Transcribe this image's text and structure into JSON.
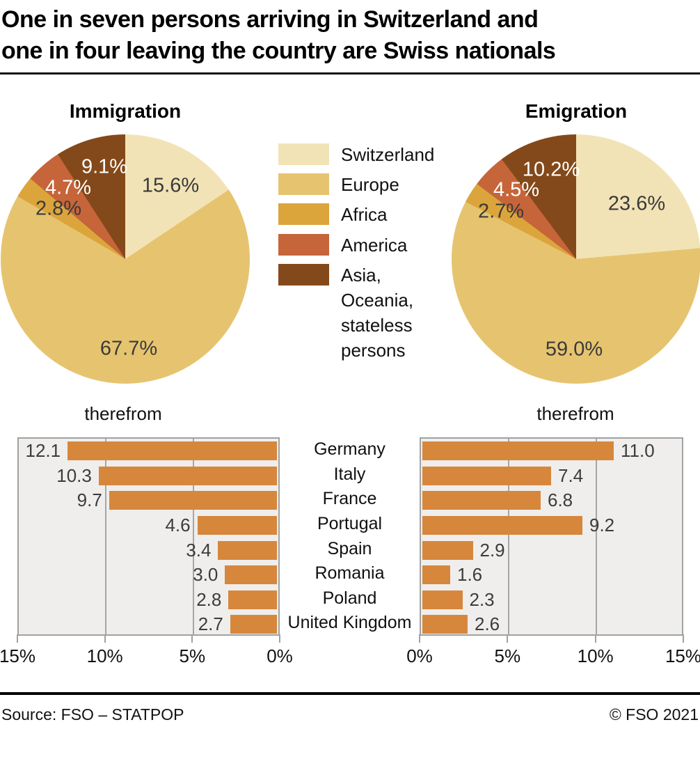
{
  "title": {
    "line1": "One in seven persons arriving in Switzerland and",
    "line2": "one in four leaving the country are Swiss nationals"
  },
  "legend": {
    "items": [
      {
        "label": "Switzerland",
        "lines": [
          "Switzerland"
        ],
        "color": "#f2e3b6"
      },
      {
        "label": "Europe",
        "lines": [
          "Europe"
        ],
        "color": "#e6c46f"
      },
      {
        "label": "Africa",
        "lines": [
          "Africa"
        ],
        "color": "#dca53c"
      },
      {
        "label": "America",
        "lines": [
          "America"
        ],
        "color": "#c66539"
      },
      {
        "label": "Asia, Oceania, stateless persons",
        "lines": [
          "Asia,",
          "Oceania,",
          "stateless",
          "persons"
        ],
        "color": "#84491a"
      }
    ]
  },
  "chart_data": [
    {
      "type": "pie",
      "title": "Immigration",
      "categories": [
        "Switzerland",
        "Europe",
        "Africa",
        "America",
        "Asia, Oceania, stateless persons"
      ],
      "values": [
        15.6,
        67.7,
        2.8,
        4.7,
        9.1
      ],
      "slice_labels": [
        "15.6%",
        "67.7%",
        "2.8%",
        "4.7%",
        "9.1%"
      ],
      "colors": [
        "#f2e3b6",
        "#e6c46f",
        "#dca53c",
        "#c66539",
        "#84491a"
      ],
      "start_angle_deg": 0,
      "direction": "clockwise"
    },
    {
      "type": "pie",
      "title": "Emigration",
      "categories": [
        "Switzerland",
        "Europe",
        "Africa",
        "America",
        "Asia, Oceania, stateless persons"
      ],
      "values": [
        23.6,
        59.0,
        2.7,
        4.5,
        10.2
      ],
      "slice_labels": [
        "23.6%",
        "59.0%",
        "2.7%",
        "4.5%",
        "10.2%"
      ],
      "colors": [
        "#f2e3b6",
        "#e6c46f",
        "#dca53c",
        "#c66539",
        "#84491a"
      ],
      "start_angle_deg": 0,
      "direction": "clockwise"
    },
    {
      "type": "bar",
      "title": "therefrom",
      "side": "immigration",
      "orientation": "horizontal",
      "bar_direction": "right-to-left",
      "categories": [
        "Germany",
        "Italy",
        "France",
        "Portugal",
        "Spain",
        "Romania",
        "Poland",
        "United Kingdom"
      ],
      "values": [
        12.1,
        10.3,
        9.7,
        4.6,
        3.4,
        3.0,
        2.8,
        2.7
      ],
      "value_labels": [
        "12.1",
        "10.3",
        "9.7",
        "4.6",
        "3.4",
        "3.0",
        "2.8",
        "2.7"
      ],
      "ticks": [
        "15%",
        "10%",
        "5%",
        "0%"
      ],
      "xlim": [
        0,
        15
      ],
      "bar_color": "#d6873c",
      "plot_background": "#efeeec",
      "grid": true
    },
    {
      "type": "bar",
      "title": "therefrom",
      "side": "emigration",
      "orientation": "horizontal",
      "bar_direction": "left-to-right",
      "categories": [
        "Germany",
        "Italy",
        "France",
        "Portugal",
        "Spain",
        "Romania",
        "Poland",
        "United Kingdom"
      ],
      "values": [
        11.0,
        7.4,
        6.8,
        9.2,
        2.9,
        1.6,
        2.3,
        2.6
      ],
      "value_labels": [
        "11.0",
        "7.4",
        "6.8",
        "9.2",
        "2.9",
        "1.6",
        "2.3",
        "2.6"
      ],
      "ticks": [
        "0%",
        "5%",
        "10%",
        "15%"
      ],
      "xlim": [
        0,
        15
      ],
      "bar_color": "#d6873c",
      "plot_background": "#efeeec",
      "grid": true
    }
  ],
  "footer": {
    "source": "Source: FSO – STATPOP",
    "copyright": "© FSO 2021"
  }
}
